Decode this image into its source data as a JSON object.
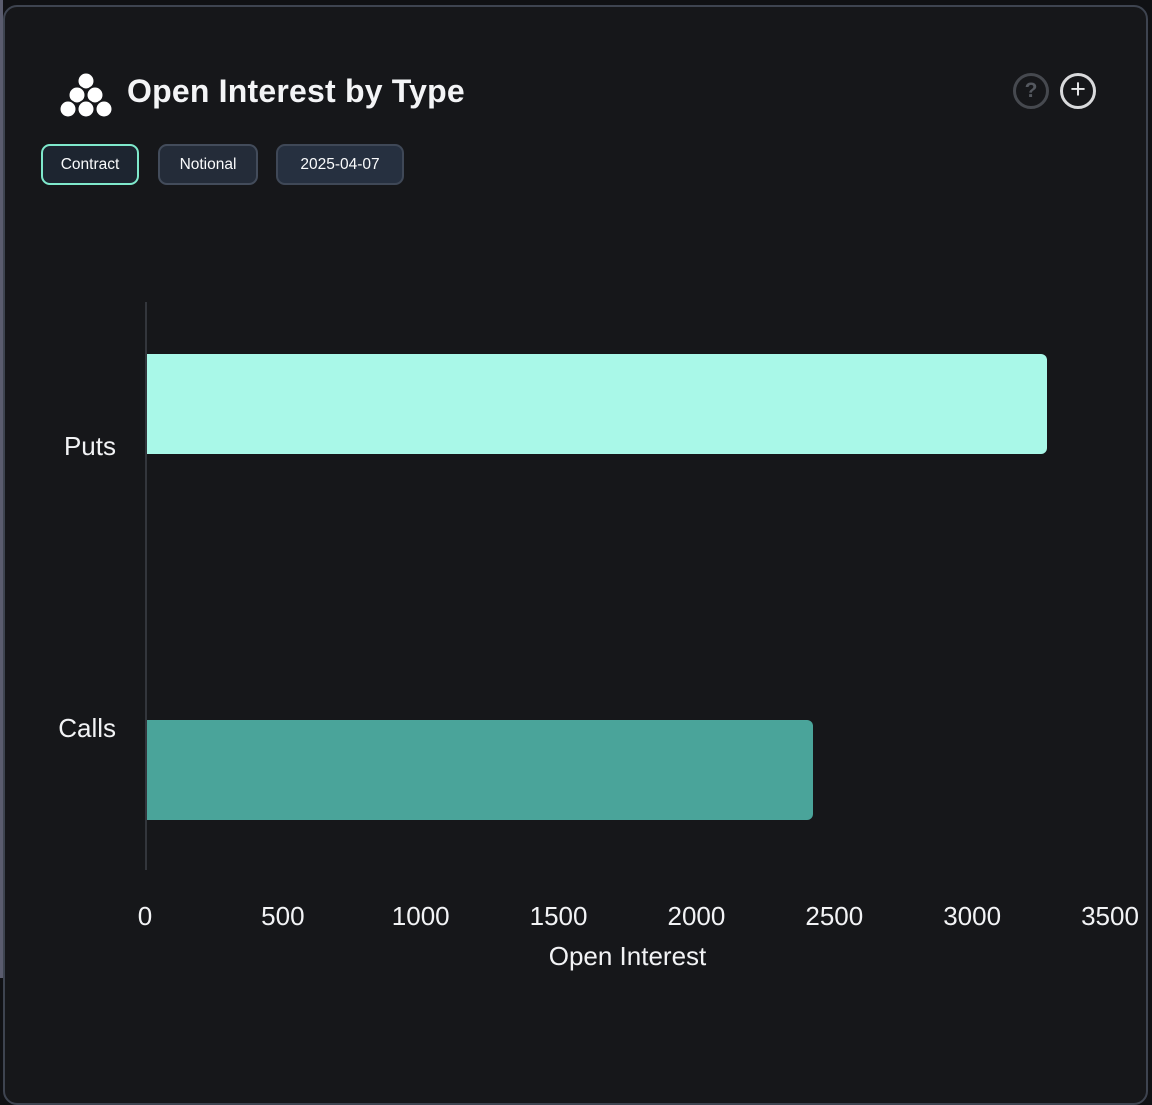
{
  "header": {
    "title": "Open Interest by Type",
    "logo_icon": "cluster-dots",
    "help_label": "?",
    "add_label": "+"
  },
  "toolbar": {
    "buttons": [
      {
        "label": "Contract",
        "active": true
      },
      {
        "label": "Notional",
        "active": false
      },
      {
        "label": "2025-04-07",
        "active": false
      }
    ]
  },
  "chart_data": {
    "type": "bar",
    "orientation": "horizontal",
    "title": "Open Interest by Type",
    "categories": [
      "Puts",
      "Calls"
    ],
    "values": [
      3270,
      2420
    ],
    "colors": [
      "#a9f8e8",
      "#4aa49a"
    ],
    "xlabel": "Open Interest",
    "ylabel": "",
    "xticks": [
      0,
      500,
      1000,
      1500,
      2000,
      2500,
      3000,
      3500
    ],
    "xlim": [
      0,
      3500
    ],
    "grid": false,
    "legend": false
  },
  "colors": {
    "page_background": "#101114",
    "card_background": "#16171a",
    "card_border": "#3e4450",
    "accent": "#7fe9cc",
    "text": "#f2f3f5",
    "axis_line": "#33363c"
  }
}
